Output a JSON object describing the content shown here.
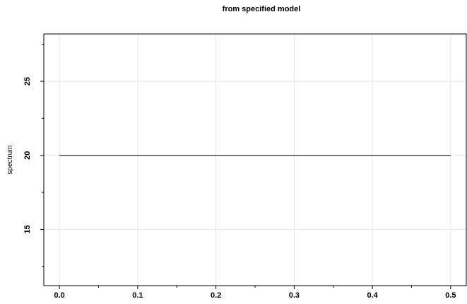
{
  "chart_data": {
    "type": "line",
    "title": "from specified model",
    "xlabel": "",
    "ylabel": "spectrum",
    "xlim": [
      -0.02,
      0.52
    ],
    "ylim": [
      11.2,
      28.2
    ],
    "x_ticks": [
      0.0,
      0.1,
      0.2,
      0.3,
      0.4,
      0.5
    ],
    "x_tick_labels": [
      "0.0",
      "0.1",
      "0.2",
      "0.3",
      "0.4",
      "0.5"
    ],
    "x_minor_ticks": [
      0.05,
      0.15,
      0.25,
      0.35,
      0.45
    ],
    "y_ticks": [
      15,
      20,
      25
    ],
    "y_tick_labels": [
      "15",
      "20",
      "25"
    ],
    "y_minor_ticks": [
      12.5,
      17.5,
      22.5,
      27.5
    ],
    "grid": true,
    "series": [
      {
        "x": [
          0.0,
          0.5
        ],
        "y": [
          20,
          20
        ]
      }
    ]
  }
}
